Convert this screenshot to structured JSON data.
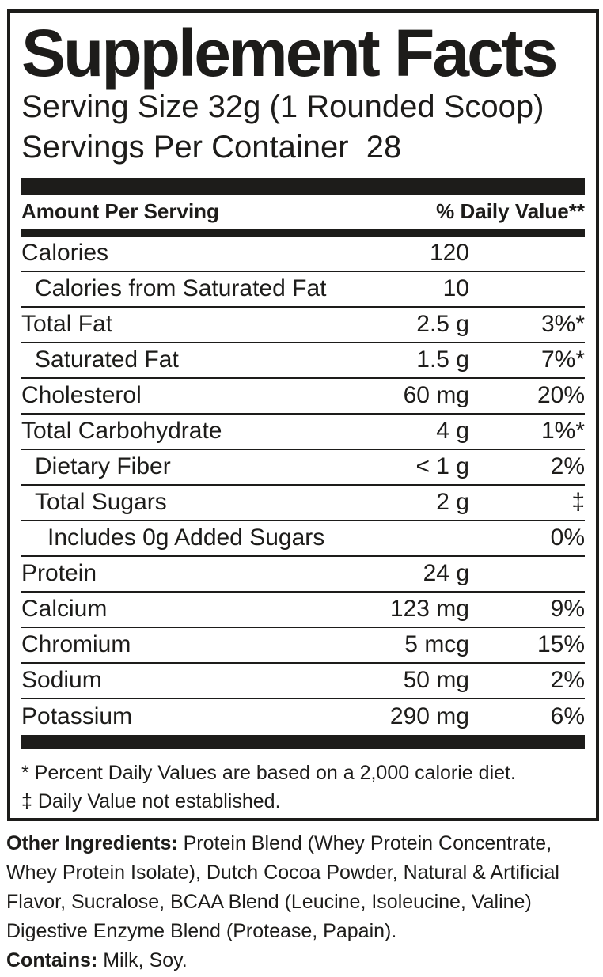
{
  "label": {
    "title": "Supplement Facts",
    "serving_size": "Serving Size 32g (1 Rounded Scoop)",
    "servings_per_container": "Servings Per Container  28",
    "header": {
      "left": "Amount Per Serving",
      "right": "% Daily Value**"
    },
    "rows": [
      {
        "name": "Calories",
        "amount": "120",
        "dv": "",
        "indent": 0
      },
      {
        "name": "Calories from Saturated Fat",
        "amount": "10",
        "dv": "",
        "indent": 1
      },
      {
        "name": "Total Fat",
        "amount": "2.5 g",
        "dv": "3%*",
        "indent": 0
      },
      {
        "name": "Saturated Fat",
        "amount": "1.5 g",
        "dv": "7%*",
        "indent": 1
      },
      {
        "name": "Cholesterol",
        "amount": "60 mg",
        "dv": "20%",
        "indent": 0
      },
      {
        "name": "Total Carbohydrate",
        "amount": "4 g",
        "dv": "1%*",
        "indent": 0
      },
      {
        "name": "Dietary Fiber",
        "amount": "< 1 g",
        "dv": "2%",
        "indent": 1
      },
      {
        "name": "Total Sugars",
        "amount": "2 g",
        "dv": "‡",
        "indent": 1
      },
      {
        "name": "Includes 0g Added Sugars",
        "amount": "",
        "dv": "0%",
        "indent": 2
      },
      {
        "name": "Protein",
        "amount": "24 g",
        "dv": "",
        "indent": 0
      },
      {
        "name": "Calcium",
        "amount": "123 mg",
        "dv": "9%",
        "indent": 0
      },
      {
        "name": "Chromium",
        "amount": "5 mcg",
        "dv": "15%",
        "indent": 0
      },
      {
        "name": "Sodium",
        "amount": "50 mg",
        "dv": "2%",
        "indent": 0
      },
      {
        "name": "Potassium",
        "amount": "290 mg",
        "dv": "6%",
        "indent": 0
      }
    ],
    "footnotes": [
      "* Percent Daily Values are based on a 2,000 calorie diet.",
      "‡ Daily Value not established."
    ]
  },
  "other_ingredients": {
    "label": "Other Ingredients:",
    "text": " Protein Blend (Whey Protein Concentrate, Whey Protein Isolate), Dutch Cocoa Powder, Natural & Artificial Flavor, Sucralose, BCAA Blend (Leucine, Isoleucine, Valine) Digestive Enzyme Blend (Protease, Papain)."
  },
  "contains": {
    "label": "Contains:",
    "text": " Milk, Soy."
  },
  "colors": {
    "ink": "#1d1c1a",
    "background": "#ffffff"
  }
}
